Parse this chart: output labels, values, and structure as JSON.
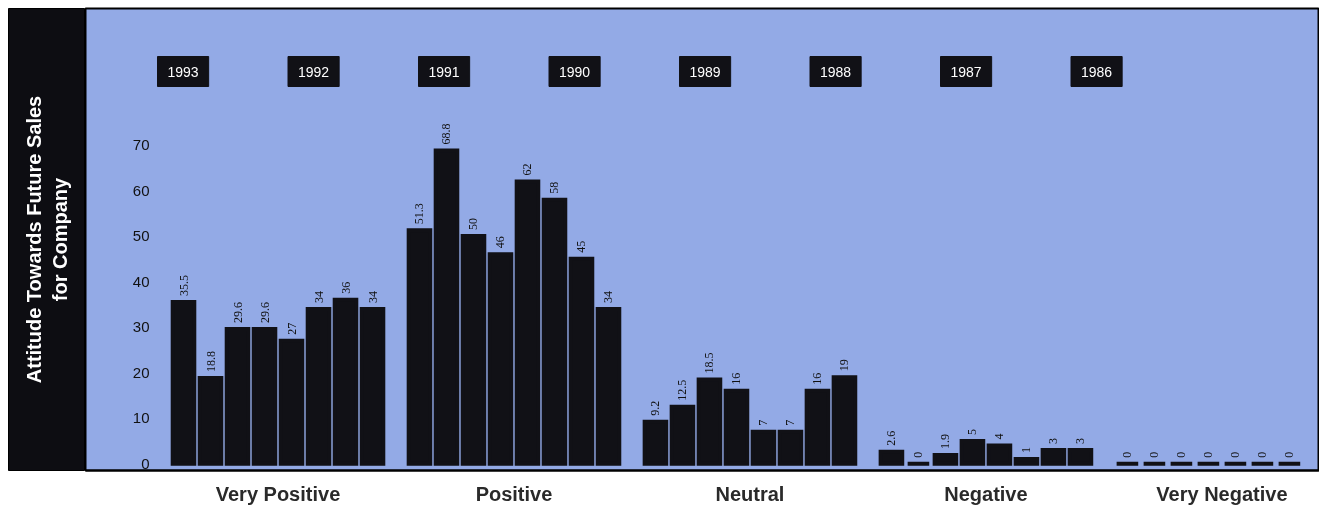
{
  "chart_data": {
    "type": "bar",
    "ylabel": "Attitude Towards Future Sales\nfor Company",
    "categories": [
      "Very Positive",
      "Positive",
      "Neutral",
      "Negative",
      "Very Negative"
    ],
    "series": [
      {
        "name": "1993",
        "color": "#111116",
        "values": [
          35.5,
          51.3,
          9.2,
          2.6,
          0
        ]
      },
      {
        "name": "1992",
        "color": "#111116",
        "values": [
          18.8,
          68.8,
          12.5,
          0,
          0
        ]
      },
      {
        "name": "1991",
        "color": "#111116",
        "values": [
          29.6,
          50,
          18.5,
          1.9,
          0
        ]
      },
      {
        "name": "1990",
        "color": "#111116",
        "values": [
          29.6,
          46,
          16,
          5,
          0
        ]
      },
      {
        "name": "1989",
        "color": "#111116",
        "values": [
          27,
          62,
          7,
          4,
          0
        ]
      },
      {
        "name": "1988",
        "color": "#111116",
        "values": [
          34,
          58,
          7,
          1,
          0
        ]
      },
      {
        "name": "1987",
        "color": "#111116",
        "values": [
          36,
          45,
          16,
          3,
          0
        ]
      },
      {
        "name": "1986",
        "color": "#111116",
        "values": [
          34,
          34,
          19,
          3,
          null
        ]
      }
    ],
    "ylim": [
      -1.5,
      100
    ],
    "yticks": [
      0,
      10,
      20,
      30,
      40,
      50,
      60,
      70
    ],
    "data_labels": true,
    "legend": "top",
    "grid": false
  }
}
